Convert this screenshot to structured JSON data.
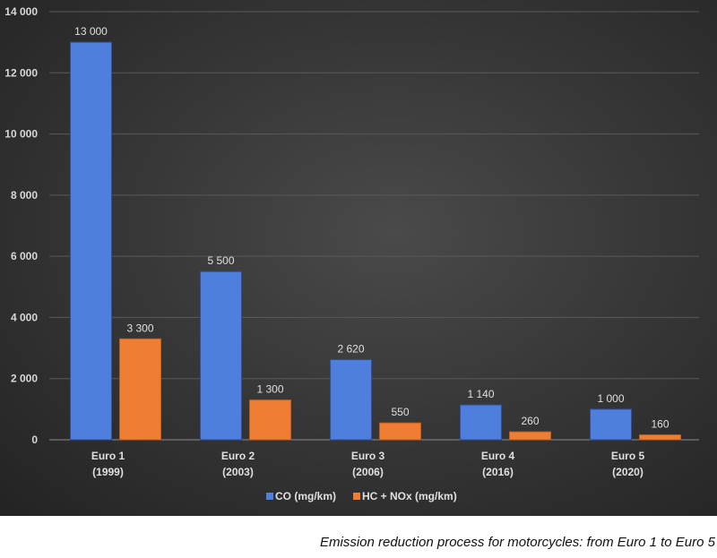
{
  "chart_data": {
    "type": "bar",
    "categories": [
      "Euro 1\n(1999)",
      "Euro 2\n(2003)",
      "Euro 3\n(2006)",
      "Euro 4\n(2016)",
      "Euro 5\n(2020)"
    ],
    "series": [
      {
        "name": "CO (mg/km)",
        "values": [
          13000,
          5500,
          2620,
          1140,
          1000
        ],
        "labels": [
          "13 000",
          "5 500",
          "2 620",
          "1 140",
          "1 000"
        ],
        "color": "#4f7fdc"
      },
      {
        "name": "HC + NOx (mg/km)",
        "values": [
          3300,
          1300,
          550,
          260,
          160
        ],
        "labels": [
          "3 300",
          "1 300",
          "550",
          "260",
          "160"
        ],
        "color": "#ef7d33"
      }
    ],
    "ylim": [
      0,
      14000
    ],
    "yticks": [
      0,
      2000,
      4000,
      6000,
      8000,
      10000,
      12000,
      14000
    ],
    "ytick_labels": [
      "0",
      "2 000",
      "4 000",
      "6 000",
      "8 000",
      "10 000",
      "12 000",
      "14 000"
    ],
    "grid": true,
    "legend": "bottom",
    "background": "#333333"
  },
  "caption": "Emission reduction process for motorcycles: from Euro 1 to Euro 5"
}
